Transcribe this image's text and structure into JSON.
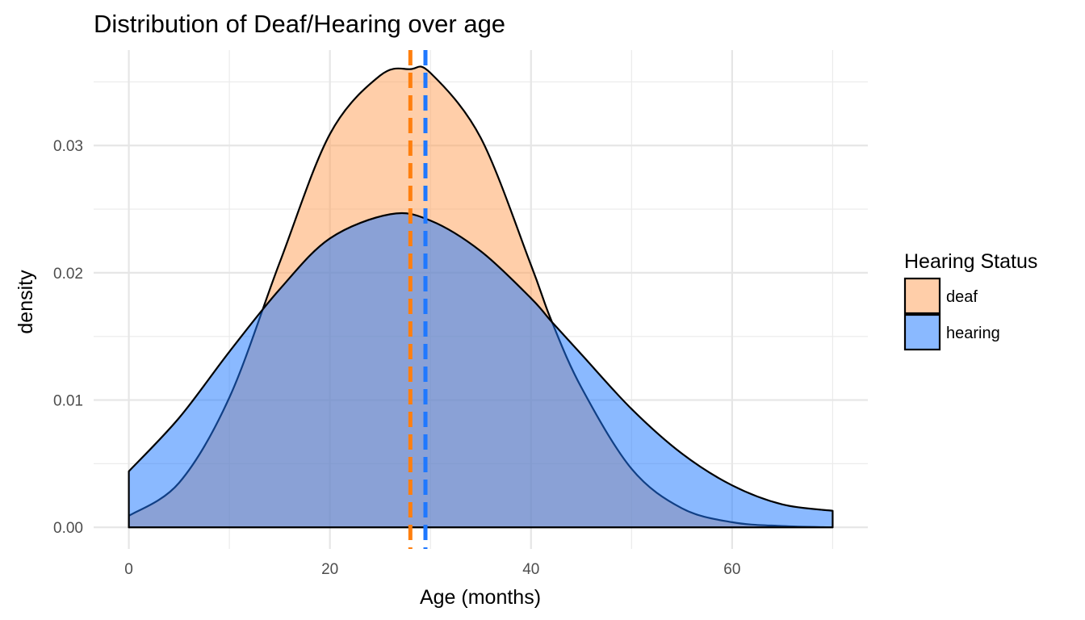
{
  "chart_data": {
    "type": "area",
    "title": "Distribution of Deaf/Hearing over age",
    "xlabel": "Age (months)",
    "ylabel": "density",
    "xlim": [
      -3.5,
      73.5
    ],
    "ylim": [
      -0.0017,
      0.0375
    ],
    "x_ticks": [
      0,
      20,
      40,
      60
    ],
    "y_ticks": [
      0.0,
      0.01,
      0.02,
      0.03
    ],
    "y_tick_labels": [
      "0.00",
      "0.01",
      "0.02",
      "0.03"
    ],
    "grid": true,
    "legend": {
      "title": "Hearing Status",
      "position": "right"
    },
    "series": [
      {
        "name": "deaf",
        "fill": "#FFA15A",
        "line": "#FF7F0E",
        "mean": 28.0,
        "x": [
          0,
          5,
          10,
          15,
          20,
          25,
          28,
          30,
          35,
          40,
          42,
          45,
          50,
          55,
          60,
          65,
          70
        ],
        "y": [
          0.0009,
          0.0035,
          0.0102,
          0.0208,
          0.0309,
          0.0355,
          0.036,
          0.0357,
          0.0306,
          0.0206,
          0.0163,
          0.011,
          0.0046,
          0.0015,
          0.0004,
          0.0001,
          0.0
        ]
      },
      {
        "name": "hearing",
        "fill": "#1F78FF",
        "line": "#1F78FF",
        "mean": 29.5,
        "x": [
          0,
          5,
          10,
          15,
          20,
          26,
          30,
          35,
          40,
          42,
          45,
          50,
          55,
          60,
          65,
          70
        ],
        "y": [
          0.0044,
          0.0086,
          0.0138,
          0.0187,
          0.0227,
          0.0246,
          0.0241,
          0.0217,
          0.018,
          0.0162,
          0.0136,
          0.0093,
          0.0058,
          0.0033,
          0.0018,
          0.0013
        ]
      }
    ]
  }
}
